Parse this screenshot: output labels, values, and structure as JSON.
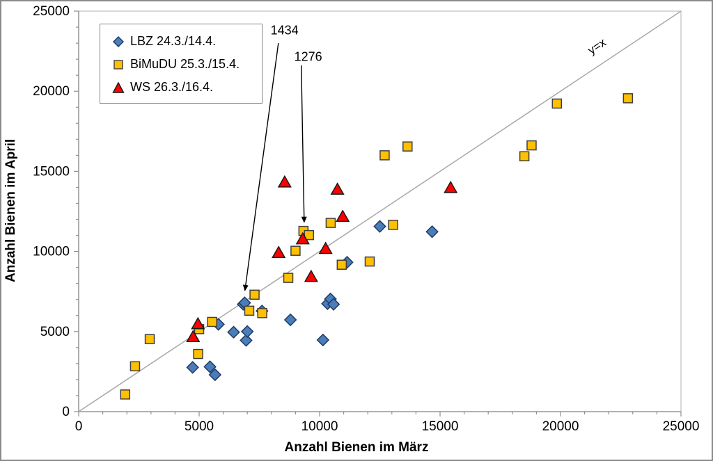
{
  "chart_data": {
    "type": "scatter",
    "title": "",
    "xlabel": "Anzahl Bienen im März",
    "ylabel": "Anzahl Bienen im April",
    "xlim": [
      0,
      25000
    ],
    "ylim": [
      0,
      25000
    ],
    "x_major_ticks": [
      0,
      5000,
      10000,
      15000,
      20000,
      25000
    ],
    "y_major_ticks": [
      0,
      5000,
      10000,
      15000,
      20000,
      25000
    ],
    "minor_tick_step": 1000,
    "grid": "off",
    "legend_position": "top-left",
    "axis_color": "#8e8e8e",
    "plot_border_color": "#c8c8c8",
    "reference_line": {
      "label": "y=x",
      "from": [
        0,
        0
      ],
      "to": [
        25000,
        25000
      ],
      "color": "#a8a8a8",
      "label_pos": [
        21600,
        22600
      ],
      "label_angle_deg": -33.6
    },
    "series": [
      {
        "key": "lbz",
        "name": "LBZ 24.3./14.4.",
        "marker": "diamond",
        "fill": "#4a7ebb",
        "stroke": "#1f3864",
        "points": [
          [
            4730,
            2760
          ],
          [
            5450,
            2800
          ],
          [
            5660,
            2300
          ],
          [
            5800,
            5450
          ],
          [
            6430,
            4960
          ],
          [
            6830,
            6700
          ],
          [
            6890,
            6790
          ],
          [
            6950,
            4450
          ],
          [
            7000,
            5000
          ],
          [
            7610,
            6280
          ],
          [
            8790,
            5730
          ],
          [
            10140,
            4470
          ],
          [
            10330,
            6740
          ],
          [
            10450,
            7030
          ],
          [
            10580,
            6700
          ],
          [
            11140,
            9320
          ],
          [
            12500,
            11560
          ],
          [
            14670,
            11230
          ]
        ]
      },
      {
        "key": "bimudu",
        "name": "BiMuDU 25.3./15.4.",
        "marker": "square",
        "fill": "#ffc000",
        "stroke": "#3f3f3f",
        "points": [
          [
            1930,
            1070
          ],
          [
            2340,
            2830
          ],
          [
            2950,
            4530
          ],
          [
            4960,
            3600
          ],
          [
            5000,
            5150
          ],
          [
            5540,
            5600
          ],
          [
            7080,
            6300
          ],
          [
            7300,
            7300
          ],
          [
            7620,
            6150
          ],
          [
            8700,
            8350
          ],
          [
            9000,
            10040
          ],
          [
            9330,
            11280
          ],
          [
            9560,
            11020
          ],
          [
            10460,
            11780
          ],
          [
            10920,
            9170
          ],
          [
            12080,
            9370
          ],
          [
            12700,
            16000
          ],
          [
            13050,
            11660
          ],
          [
            13650,
            16550
          ],
          [
            18500,
            15940
          ],
          [
            18800,
            16620
          ],
          [
            19850,
            19230
          ],
          [
            22800,
            19560
          ]
        ]
      },
      {
        "key": "ws",
        "name": "WS 26.3./16.4.",
        "marker": "triangle",
        "fill": "#fe0000",
        "stroke": "#1a1a1a",
        "points": [
          [
            4750,
            4700
          ],
          [
            4950,
            5500
          ],
          [
            8300,
            9950
          ],
          [
            8550,
            14350
          ],
          [
            9300,
            10800
          ],
          [
            9650,
            8450
          ],
          [
            10250,
            10200
          ],
          [
            10740,
            13900
          ],
          [
            10960,
            12200
          ],
          [
            15440,
            14000
          ]
        ]
      }
    ],
    "annotations": [
      {
        "text": "1434",
        "label_pos": [
          8545,
          23785
        ],
        "arrow_from": [
          8290,
          23000
        ],
        "arrow_to": [
          6900,
          7560
        ]
      },
      {
        "text": "1276",
        "label_pos": [
          9527,
          22135
        ],
        "arrow_from": [
          9240,
          21610
        ],
        "arrow_to": [
          9360,
          11820
        ]
      }
    ]
  }
}
